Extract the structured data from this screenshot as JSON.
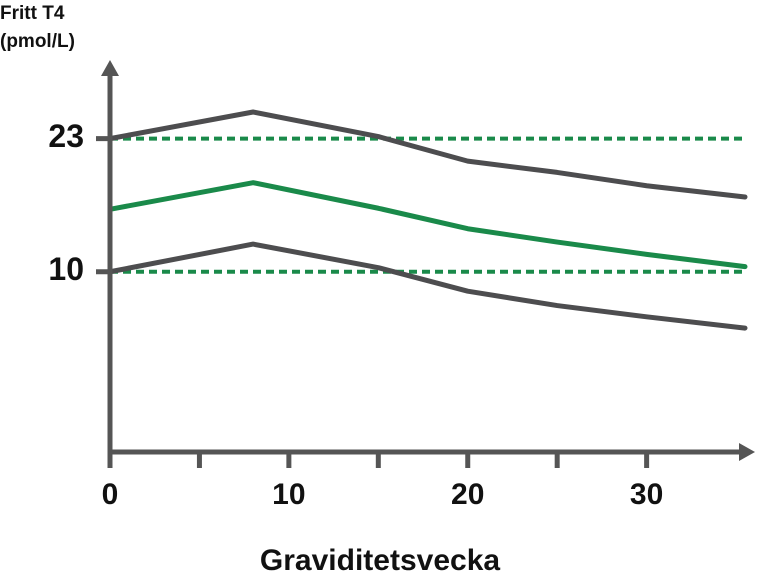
{
  "chart_data": {
    "type": "line",
    "y_label": [
      "Fritt T4",
      "(pmol/L)"
    ],
    "x_label": "Graviditetsvecka",
    "xlim": [
      0,
      35.5
    ],
    "ylim": [
      -7.6,
      29.7
    ],
    "xticks": [
      0,
      10,
      20,
      30
    ],
    "xminor_ticks": [
      5,
      15,
      25
    ],
    "yticks": [
      10,
      23
    ],
    "axis_color": "#555555",
    "reference_lines": {
      "values": [
        10,
        23
      ],
      "color": "#1a8a4a",
      "dashed": true
    },
    "x": [
      0,
      8,
      15,
      20,
      25,
      30,
      35.5
    ],
    "series": [
      {
        "color": "#4d4d4f",
        "values": [
          23,
          25.6,
          23.2,
          20.8,
          19.7,
          18.4,
          17.3
        ]
      },
      {
        "color": "#1a8a4a",
        "values": [
          16.1,
          18.7,
          16.2,
          14.2,
          12.9,
          11.7,
          10.5
        ]
      },
      {
        "color": "#4d4d4f",
        "values": [
          10,
          12.7,
          10.4,
          8.1,
          6.7,
          5.6,
          4.5
        ]
      }
    ]
  }
}
